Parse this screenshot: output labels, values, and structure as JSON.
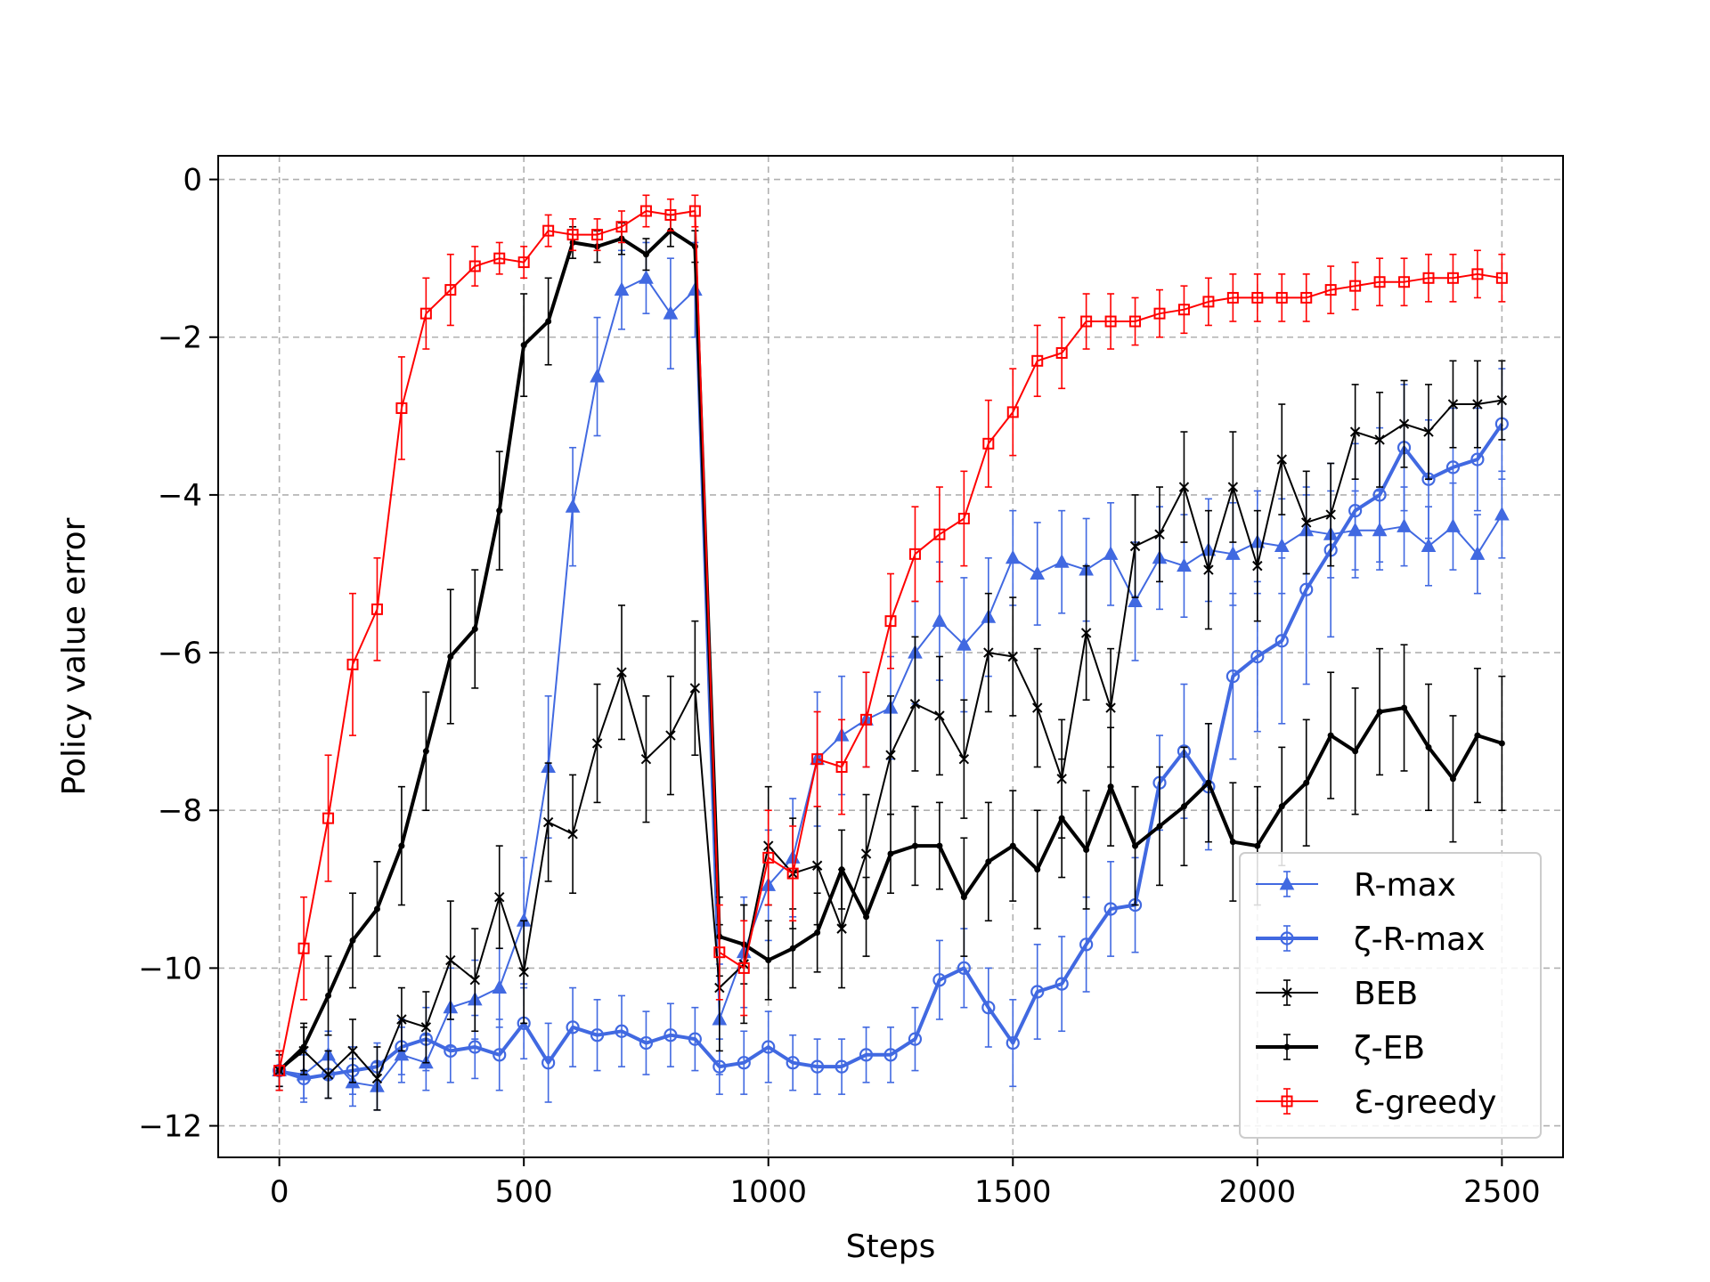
{
  "chart_data": {
    "type": "line",
    "title": "",
    "xlabel": "Steps",
    "ylabel": "Policy value error",
    "xlim": [
      -125,
      2625
    ],
    "ylim": [
      -12.4,
      0.3
    ],
    "xticks": [
      0,
      500,
      1000,
      1500,
      2000,
      2500
    ],
    "yticks": [
      0,
      -2,
      -4,
      -6,
      -8,
      -10,
      -12
    ],
    "xtick_labels": [
      "0",
      "500",
      "1000",
      "1500",
      "2000",
      "2500"
    ],
    "ytick_labels": [
      "0",
      "−2",
      "−4",
      "−6",
      "−8",
      "−10",
      "−12"
    ],
    "grid": true,
    "legend_position": "lower-right",
    "x": [
      0,
      50,
      100,
      150,
      200,
      250,
      300,
      350,
      400,
      450,
      500,
      550,
      600,
      650,
      700,
      750,
      800,
      850,
      900,
      950,
      1000,
      1050,
      1100,
      1150,
      1200,
      1250,
      1300,
      1350,
      1400,
      1450,
      1500,
      1550,
      1600,
      1650,
      1700,
      1750,
      1800,
      1850,
      1900,
      1950,
      2000,
      2050,
      2100,
      2150,
      2200,
      2250,
      2300,
      2350,
      2400,
      2450,
      2500
    ],
    "series": [
      {
        "name": "R-max",
        "color": "#4169e1",
        "marker": "triangle",
        "linewidth": 2,
        "values": [
          -11.3,
          -11.35,
          -11.1,
          -11.45,
          -11.5,
          -11.1,
          -11.2,
          -10.5,
          -10.4,
          -10.25,
          -9.4,
          -7.45,
          -4.15,
          -2.5,
          -1.4,
          -1.25,
          -1.7,
          -1.4,
          -10.65,
          -9.8,
          -8.95,
          -8.6,
          -7.35,
          -7.05,
          -6.85,
          -6.7,
          -6.0,
          -5.6,
          -5.9,
          -5.55,
          -4.8,
          -5.0,
          -4.85,
          -4.95,
          -4.75,
          -5.35,
          -4.8,
          -4.9,
          -4.7,
          -4.75,
          -4.6,
          -4.65,
          -4.45,
          -4.5,
          -4.45,
          -4.45,
          -4.4,
          -4.65,
          -4.4,
          -4.75,
          -4.25
        ],
        "errors": [
          0.2,
          0.3,
          0.3,
          0.3,
          0.3,
          0.35,
          0.35,
          0.5,
          0.5,
          0.5,
          0.8,
          0.9,
          0.75,
          0.75,
          0.5,
          0.45,
          0.7,
          0.6,
          0.7,
          0.7,
          0.7,
          0.75,
          0.85,
          0.75,
          0.6,
          0.65,
          0.65,
          0.75,
          0.85,
          0.75,
          0.6,
          0.65,
          0.65,
          0.65,
          0.65,
          0.75,
          0.65,
          0.65,
          0.65,
          0.65,
          0.65,
          0.6,
          0.55,
          0.55,
          0.5,
          0.5,
          0.5,
          0.5,
          0.55,
          0.5,
          0.55
        ]
      },
      {
        "name": "ζ-R-max",
        "color": "#4169e1",
        "marker": "circle",
        "linewidth": 4,
        "values": [
          -11.3,
          -11.4,
          -11.35,
          -11.3,
          -11.25,
          -11.0,
          -10.9,
          -11.05,
          -11.0,
          -11.1,
          -10.7,
          -11.2,
          -10.75,
          -10.85,
          -10.8,
          -10.95,
          -10.85,
          -10.9,
          -11.25,
          -11.2,
          -11.0,
          -11.2,
          -11.25,
          -11.25,
          -11.1,
          -11.1,
          -10.9,
          -10.15,
          -10.0,
          -10.5,
          -10.95,
          -10.3,
          -10.2,
          -9.7,
          -9.25,
          -9.2,
          -7.65,
          -7.25,
          -7.7,
          -6.3,
          -6.05,
          -5.85,
          -5.2,
          -4.7,
          -4.2,
          -4.0,
          -3.4,
          -3.8,
          -3.65,
          -3.55,
          -3.1
        ],
        "errors": [
          0.2,
          0.3,
          0.3,
          0.3,
          0.3,
          0.35,
          0.4,
          0.4,
          0.4,
          0.45,
          0.45,
          0.5,
          0.5,
          0.45,
          0.45,
          0.4,
          0.4,
          0.4,
          0.35,
          0.4,
          0.45,
          0.35,
          0.35,
          0.35,
          0.35,
          0.35,
          0.4,
          0.5,
          0.5,
          0.5,
          0.55,
          0.6,
          0.6,
          0.6,
          0.6,
          0.6,
          0.6,
          0.85,
          0.8,
          1.05,
          0.95,
          1.05,
          1.2,
          1.1,
          0.85,
          0.85,
          0.8,
          0.75,
          0.75,
          0.65,
          0.7
        ]
      },
      {
        "name": "BEB",
        "color": "#000000",
        "marker": "x",
        "linewidth": 2,
        "values": [
          -11.3,
          -11.05,
          -11.35,
          -11.05,
          -11.4,
          -10.65,
          -10.75,
          -9.9,
          -10.15,
          -9.1,
          -10.05,
          -8.15,
          -8.3,
          -7.15,
          -6.25,
          -7.35,
          -7.05,
          -6.45,
          -10.25,
          -9.95,
          -8.45,
          -8.8,
          -8.7,
          -9.5,
          -8.55,
          -7.3,
          -6.65,
          -6.8,
          -7.35,
          -6.0,
          -6.05,
          -6.7,
          -7.6,
          -5.75,
          -6.7,
          -4.65,
          -4.5,
          -3.9,
          -4.95,
          -3.9,
          -4.9,
          -3.55,
          -4.35,
          -4.25,
          -3.2,
          -3.3,
          -3.1,
          -3.2,
          -2.85,
          -2.85,
          -2.8
        ],
        "errors": [
          0.2,
          0.3,
          0.3,
          0.4,
          0.4,
          0.4,
          0.45,
          0.75,
          0.65,
          0.65,
          0.65,
          0.75,
          0.75,
          0.75,
          0.85,
          0.8,
          0.75,
          0.85,
          0.8,
          0.75,
          0.75,
          0.7,
          0.75,
          0.75,
          0.75,
          0.75,
          0.85,
          0.75,
          0.75,
          0.75,
          0.75,
          0.75,
          0.75,
          0.85,
          0.75,
          0.65,
          0.6,
          0.7,
          0.75,
          0.7,
          0.7,
          0.7,
          0.65,
          0.65,
          0.6,
          0.6,
          0.55,
          0.6,
          0.55,
          0.55,
          0.5
        ]
      },
      {
        "name": "ζ-EB",
        "color": "#000000",
        "marker": "dot",
        "linewidth": 4,
        "values": [
          -11.3,
          -11.0,
          -10.35,
          -9.65,
          -9.25,
          -8.45,
          -7.25,
          -6.05,
          -5.7,
          -4.2,
          -2.1,
          -1.8,
          -0.8,
          -0.85,
          -0.75,
          -0.95,
          -0.65,
          -0.85,
          -9.6,
          -9.7,
          -9.9,
          -9.75,
          -9.55,
          -8.75,
          -9.35,
          -8.55,
          -8.45,
          -8.45,
          -9.1,
          -8.65,
          -8.45,
          -8.75,
          -8.1,
          -8.5,
          -7.7,
          -8.45,
          -8.2,
          -7.95,
          -7.65,
          -8.4,
          -8.45,
          -7.95,
          -7.65,
          -7.05,
          -7.25,
          -6.75,
          -6.7,
          -7.2,
          -7.6,
          -7.05,
          -7.15
        ],
        "errors": [
          0.25,
          0.3,
          0.5,
          0.6,
          0.6,
          0.75,
          0.75,
          0.85,
          0.75,
          0.75,
          0.65,
          0.55,
          0.2,
          0.2,
          0.2,
          0.2,
          0.2,
          0.2,
          0.5,
          0.5,
          0.5,
          0.5,
          0.5,
          0.5,
          0.5,
          0.5,
          0.5,
          0.55,
          0.75,
          0.75,
          0.7,
          0.75,
          0.75,
          0.75,
          0.75,
          0.75,
          0.75,
          0.75,
          0.75,
          0.75,
          0.75,
          0.75,
          0.8,
          0.8,
          0.8,
          0.8,
          0.8,
          0.8,
          0.8,
          0.85,
          0.85
        ]
      },
      {
        "name": "Ɛ-greedy",
        "color": "#ff0000",
        "marker": "square",
        "linewidth": 2,
        "values": [
          -11.3,
          -9.75,
          -8.1,
          -6.15,
          -5.45,
          -2.9,
          -1.7,
          -1.4,
          -1.1,
          -1.0,
          -1.05,
          -0.65,
          -0.7,
          -0.7,
          -0.6,
          -0.4,
          -0.45,
          -0.4,
          -9.8,
          -10.0,
          -8.6,
          -8.8,
          -7.35,
          -7.45,
          -6.85,
          -5.6,
          -4.75,
          -4.5,
          -4.3,
          -3.35,
          -2.95,
          -2.3,
          -2.2,
          -1.8,
          -1.8,
          -1.8,
          -1.7,
          -1.65,
          -1.55,
          -1.5,
          -1.5,
          -1.5,
          -1.5,
          -1.4,
          -1.35,
          -1.3,
          -1.3,
          -1.25,
          -1.25,
          -1.2,
          -1.25
        ],
        "errors": [
          0.25,
          0.65,
          0.8,
          0.9,
          0.65,
          0.65,
          0.45,
          0.45,
          0.25,
          0.2,
          0.2,
          0.2,
          0.2,
          0.2,
          0.2,
          0.2,
          0.2,
          0.2,
          0.6,
          0.6,
          0.6,
          0.6,
          0.6,
          0.6,
          0.6,
          0.6,
          0.6,
          0.6,
          0.6,
          0.55,
          0.55,
          0.45,
          0.45,
          0.35,
          0.35,
          0.3,
          0.3,
          0.3,
          0.3,
          0.3,
          0.3,
          0.3,
          0.3,
          0.3,
          0.3,
          0.3,
          0.3,
          0.3,
          0.3,
          0.3,
          0.3
        ]
      }
    ]
  }
}
